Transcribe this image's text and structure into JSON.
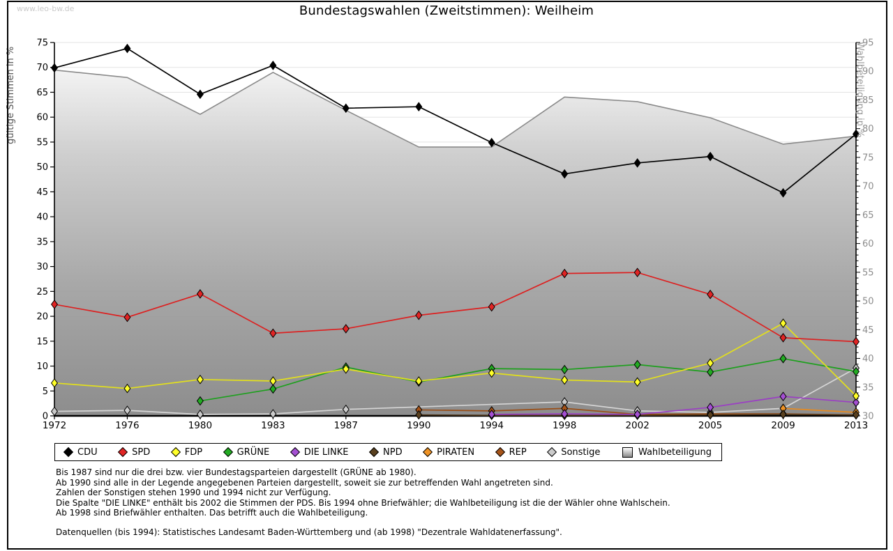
{
  "page": {
    "watermark": "www.leo-bw.de",
    "title": "Bundestagswahlen (Zweitstimmen): Weilheim"
  },
  "chart_data": {
    "type": "line",
    "title": "Bundestagswahlen (Zweitstimmen): Weilheim",
    "x_categories": [
      "1972",
      "1976",
      "1980",
      "1983",
      "1987",
      "1990",
      "1994",
      "1998",
      "2002",
      "2005",
      "2009",
      "2013"
    ],
    "left_axis": {
      "label": "gültige Stimmen in %",
      "min": 0,
      "max": 75,
      "tick_step": 5
    },
    "right_axis": {
      "label": "Wahlbeteiligung in %",
      "min": 30,
      "max": 95,
      "tick_step": 5
    },
    "grid": true,
    "legend_position": "bottom",
    "series": [
      {
        "name": "CDU",
        "axis": "left",
        "style": "line",
        "color": "#000000",
        "marker_fill": "#000000",
        "values": [
          69.9,
          73.8,
          64.6,
          70.4,
          61.8,
          62.1,
          54.9,
          48.6,
          50.8,
          52.1,
          44.8,
          56.6
        ]
      },
      {
        "name": "SPD",
        "axis": "left",
        "style": "line",
        "color": "#dd2020",
        "marker_fill": "#e02424",
        "values": [
          22.4,
          19.8,
          24.5,
          16.6,
          17.5,
          20.2,
          21.9,
          28.6,
          28.8,
          24.4,
          15.7,
          14.9
        ]
      },
      {
        "name": "FDP",
        "axis": "left",
        "style": "line",
        "color": "#e3e01c",
        "marker_fill": "#ffff29",
        "values": [
          6.6,
          5.5,
          7.3,
          7.0,
          9.4,
          7.0,
          8.6,
          7.2,
          6.8,
          10.6,
          18.6,
          4.0
        ]
      },
      {
        "name": "GRÜNE",
        "axis": "left",
        "style": "line",
        "color": "#1da01d",
        "marker_fill": "#22ab22",
        "values": [
          null,
          null,
          3.0,
          5.4,
          9.8,
          6.8,
          9.5,
          9.3,
          10.3,
          8.8,
          11.5,
          8.9
        ]
      },
      {
        "name": "DIE LINKE",
        "axis": "left",
        "style": "line",
        "color": "#9b3fc4",
        "marker_fill": "#a44fd2",
        "values": [
          null,
          null,
          null,
          null,
          null,
          null,
          0.3,
          0.4,
          0.3,
          1.7,
          3.9,
          2.7
        ]
      },
      {
        "name": "NPD",
        "axis": "left",
        "style": "line",
        "color": "#4f371c",
        "marker_fill": "#59401f",
        "values": [
          null,
          null,
          null,
          null,
          null,
          0.2,
          0.1,
          0.1,
          0.1,
          0.2,
          0.3,
          0.2
        ]
      },
      {
        "name": "PIRATEN",
        "axis": "left",
        "style": "line",
        "color": "#e78a1e",
        "marker_fill": "#ef9325",
        "values": [
          null,
          null,
          null,
          null,
          null,
          null,
          null,
          null,
          null,
          null,
          1.5,
          0.7
        ]
      },
      {
        "name": "REP",
        "axis": "left",
        "style": "line",
        "color": "#9a4d15",
        "marker_fill": "#a65419",
        "values": [
          null,
          null,
          null,
          null,
          null,
          1.2,
          1.0,
          1.5,
          0.3,
          0.4,
          0.4,
          0.2
        ]
      },
      {
        "name": "Sonstige",
        "axis": "left",
        "style": "line",
        "color": "#d6d6d6",
        "marker_fill": "#cbcbcb",
        "values": [
          0.9,
          1.1,
          0.3,
          0.4,
          1.3,
          null,
          null,
          2.8,
          1.0,
          0.7,
          1.5,
          9.6
        ]
      },
      {
        "name": "Wahlbeteiligung",
        "axis": "right",
        "style": "area",
        "color": "#8a8a8a",
        "marker_fill": null,
        "values": [
          90.2,
          88.9,
          82.5,
          89.8,
          83.2,
          76.8,
          76.8,
          85.5,
          84.7,
          81.9,
          77.3,
          78.7
        ]
      }
    ]
  },
  "footnotes": {
    "lines": [
      "Bis 1987 sind nur die drei bzw. vier Bundestagsparteien dargestellt (GRÜNE ab 1980).",
      "Ab 1990 sind alle in der Legende angegebenen Parteien dargestellt, soweit sie zur betreffenden Wahl angetreten sind.",
      "Zahlen der Sonstigen stehen 1990 und 1994 nicht zur Verfügung.",
      "Die Spalte \"DIE LINKE\" enthält bis 2002 die Stimmen der PDS. Bis 1994 ohne Briefwähler; die Wahlbeteiligung ist die der Wähler ohne Wahlschein.",
      "Ab 1998 sind Briefwähler enthalten. Das betrifft auch die Wahlbeteiligung."
    ],
    "source": "Datenquellen (bis 1994): Statistisches Landesamt Baden-Württemberg und (ab 1998) \"Dezentrale Wahldatenerfassung\"."
  }
}
